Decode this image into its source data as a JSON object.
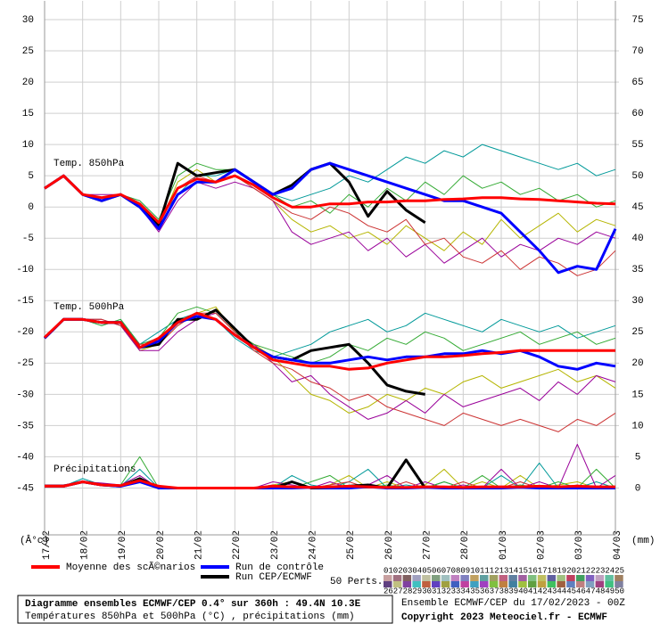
{
  "chart_data": {
    "type": "line",
    "ylabel": "(Â°c)",
    "y2label": "(mm)",
    "panels": [
      "Temp. 850hPa",
      "Temp. 500hPa",
      "Précipitations"
    ],
    "x": [
      0,
      12,
      24,
      36,
      48,
      60,
      72,
      84,
      96,
      108,
      120,
      132,
      144,
      156,
      168,
      180,
      192,
      204,
      216,
      228,
      240,
      252,
      264,
      276,
      288,
      300,
      312,
      324,
      336,
      348,
      360
    ],
    "xlim": [
      0,
      360
    ],
    "xticks": [
      {
        "value": 0,
        "label": "17/02"
      },
      {
        "value": 24,
        "label": "18/02"
      },
      {
        "value": 48,
        "label": "19/02"
      },
      {
        "value": 72,
        "label": "20/02"
      },
      {
        "value": 96,
        "label": "21/02"
      },
      {
        "value": 120,
        "label": "22/02"
      },
      {
        "value": 144,
        "label": "23/02"
      },
      {
        "value": 168,
        "label": "24/02"
      },
      {
        "value": 192,
        "label": "25/02"
      },
      {
        "value": 216,
        "label": "26/02"
      },
      {
        "value": 240,
        "label": "27/02"
      },
      {
        "value": 264,
        "label": "28/02"
      },
      {
        "value": 288,
        "label": "01/03"
      },
      {
        "value": 312,
        "label": "02/03"
      },
      {
        "value": 336,
        "label": "03/03"
      },
      {
        "value": 360,
        "label": "04/03"
      }
    ],
    "ylim": [
      -52.5,
      33
    ],
    "yticks": [
      30,
      25,
      20,
      15,
      10,
      5,
      0,
      -5,
      -10,
      -15,
      -20,
      -25,
      -30,
      -35,
      -40,
      -45
    ],
    "y2lim": [
      -7.5,
      78
    ],
    "y2ticks": [
      75,
      70,
      65,
      60,
      55,
      50,
      45,
      40,
      35,
      30,
      25,
      20,
      15,
      10,
      5,
      0
    ],
    "grid": true,
    "series": [
      {
        "name": "Moyenne des scÃ©narios",
        "color": "#ff0000",
        "values_850": [
          3,
          5,
          2,
          1.5,
          2,
          0.5,
          -2.5,
          3,
          4.5,
          4,
          5,
          3.5,
          1.5,
          0,
          0,
          0.5,
          0.5,
          0.8,
          0.8,
          1,
          1,
          1.2,
          1.3,
          1.5,
          1.5,
          1.3,
          1.2,
          1,
          0.8,
          0.6,
          0.5
        ],
        "values_500": [
          -20.9,
          -18,
          -18,
          -18.5,
          -18.5,
          -22.5,
          -21,
          -18.5,
          -17,
          -18,
          -20.5,
          -22.5,
          -24.5,
          -25,
          -25.5,
          -25.5,
          -26,
          -25.8,
          -25,
          -24.5,
          -24,
          -24,
          -23.8,
          -23.5,
          -23.3,
          -23,
          -23,
          -23,
          -23,
          -23,
          -23
        ],
        "values_precip": [
          0.3,
          0.3,
          1,
          0.5,
          0.4,
          1.2,
          0.3,
          0,
          0,
          0,
          0,
          0,
          0.3,
          0.2,
          0.1,
          0.2,
          0.3,
          0.2,
          0.1,
          0.1,
          0.2,
          0.2,
          0.1,
          0.2,
          0.2,
          0.2,
          0.3,
          0.2,
          0.3,
          0.2,
          0.2
        ]
      },
      {
        "name": "Run de contrôle",
        "color": "#0000ff",
        "values_850": [
          3,
          5,
          2,
          1,
          2,
          0,
          -3.5,
          2,
          4,
          4,
          6,
          4,
          2,
          3,
          6,
          7,
          6,
          5,
          4,
          3,
          2,
          1,
          1,
          0,
          -1,
          -4,
          -7,
          -10.5,
          -9.5,
          -10,
          -3.5
        ],
        "values_500": [
          -21,
          -18,
          -18,
          -18.5,
          -18.5,
          -22.5,
          -21.5,
          -18.5,
          -17.5,
          -18,
          -20.5,
          -22.5,
          -24,
          -24.5,
          -25,
          -25,
          -24.5,
          -24,
          -24.5,
          -24,
          -24,
          -23.5,
          -23.5,
          -23,
          -23.5,
          -23,
          -24,
          -25.5,
          -26,
          -25,
          -25.5
        ],
        "values_precip": [
          0.3,
          0.3,
          1,
          0.5,
          0.3,
          1,
          0,
          0,
          0,
          0,
          0,
          0,
          0,
          0,
          0.1,
          0,
          0,
          0.2,
          0,
          0,
          0.1,
          0,
          0,
          0,
          0,
          0.1,
          0,
          0,
          0,
          0,
          0
        ]
      },
      {
        "name": "Run CEP/ECMWF",
        "color": "#000000",
        "values_850": [
          3,
          5,
          2,
          1,
          2,
          0,
          -3,
          7,
          5,
          5.5,
          6,
          4,
          2,
          3.5,
          6,
          7,
          4,
          -1.5,
          2.5,
          -0.5,
          -2.5,
          null,
          null,
          null,
          null,
          null,
          null,
          null,
          null,
          null,
          null
        ],
        "values_500": [
          -21,
          -18,
          -18,
          -18.5,
          -18.5,
          -22.5,
          -22,
          -18,
          -18,
          -16.5,
          -19.5,
          -22.5,
          -24,
          -24.5,
          -23,
          -22.5,
          -22,
          -25,
          -28.5,
          -29.5,
          -30,
          null,
          null,
          null,
          null,
          null,
          null,
          null,
          null,
          null,
          null
        ],
        "values_precip": [
          0.3,
          0.3,
          1,
          0.5,
          0.3,
          1.5,
          0,
          0,
          0,
          0,
          0,
          0,
          0,
          1,
          0,
          0,
          0.3,
          0.5,
          0,
          4.5,
          0,
          null,
          null,
          null,
          null,
          null,
          null,
          null,
          null,
          null,
          null
        ]
      }
    ],
    "members": [
      {
        "color": "#b5b500",
        "values_850": [
          3,
          5,
          2,
          1,
          2,
          0,
          -3,
          4,
          6,
          4,
          5,
          3,
          1,
          -2,
          -4,
          -3,
          -5,
          -4,
          -6,
          -3,
          -5,
          -7,
          -4,
          -6,
          -2,
          -5,
          -3,
          -1,
          -4,
          -2,
          -3
        ],
        "values_500": [
          -21,
          -18,
          -18,
          -18,
          -19,
          -23,
          -22,
          -19,
          -17,
          -16,
          -20,
          -22,
          -24,
          -27,
          -30,
          -31,
          -33,
          -32,
          -30,
          -31,
          -29,
          -30,
          -28,
          -27,
          -29,
          -28,
          -27,
          -26,
          -28,
          -27,
          -29
        ],
        "values_precip": [
          0.5,
          0.5,
          1,
          0.5,
          0.5,
          1.5,
          0,
          0,
          0,
          0,
          0,
          0,
          0.5,
          1,
          0,
          0.5,
          2,
          0,
          1,
          0,
          0.5,
          3,
          0,
          1,
          0,
          2,
          0,
          0.5,
          1,
          0,
          0
        ]
      },
      {
        "color": "#009999",
        "values_850": [
          3,
          5,
          2,
          1,
          2,
          1,
          -2,
          2,
          5,
          5,
          6,
          4,
          2,
          1,
          2,
          3,
          5,
          4,
          6,
          8,
          7,
          9,
          8,
          10,
          9,
          8,
          7,
          6,
          7,
          5,
          6
        ],
        "values_500": [
          -21,
          -18,
          -18,
          -19,
          -18,
          -22,
          -20,
          -18,
          -17,
          -18,
          -21,
          -23,
          -24,
          -23,
          -22,
          -20,
          -19,
          -18,
          -20,
          -19,
          -17,
          -18,
          -19,
          -20,
          -18,
          -19,
          -20,
          -19,
          -21,
          -20,
          -19
        ],
        "values_precip": [
          0.3,
          0.3,
          1.5,
          0.5,
          0.3,
          3,
          0,
          0,
          0,
          0,
          0,
          0,
          0,
          2,
          0.5,
          0,
          1,
          3,
          0,
          0.5,
          0,
          1,
          0,
          0,
          2,
          0,
          4,
          0,
          0,
          1,
          0
        ]
      },
      {
        "color": "#990099",
        "values_850": [
          3,
          5,
          2,
          2,
          2,
          0,
          -4,
          1,
          4,
          3,
          4,
          3,
          1,
          -4,
          -6,
          -5,
          -4,
          -7,
          -5,
          -8,
          -6,
          -9,
          -7,
          -5,
          -8,
          -6,
          -7,
          -5,
          -6,
          -4,
          -5
        ],
        "values_500": [
          -21,
          -18,
          -18,
          -18,
          -19,
          -23,
          -23,
          -20,
          -18,
          -17,
          -20,
          -22,
          -25,
          -28,
          -27,
          -30,
          -32,
          -34,
          -33,
          -31,
          -33,
          -30,
          -32,
          -31,
          -30,
          -29,
          -31,
          -28,
          -30,
          -27,
          -28
        ],
        "values_precip": [
          0.5,
          0.5,
          1,
          0.8,
          0.5,
          2,
          0,
          0,
          0,
          0,
          0,
          0,
          1,
          0.5,
          0,
          1,
          0,
          0.5,
          2,
          0,
          1,
          0,
          0.5,
          0,
          3,
          0,
          1,
          0,
          7,
          0,
          2
        ]
      },
      {
        "color": "#33aa33",
        "values_850": [
          3,
          5,
          2,
          1,
          2,
          1,
          -2,
          5,
          7,
          6,
          6,
          4,
          2,
          0,
          1,
          -1,
          2,
          0,
          3,
          1,
          4,
          2,
          5,
          3,
          4,
          2,
          3,
          1,
          2,
          0,
          1
        ],
        "values_500": [
          -21,
          -18,
          -18,
          -19,
          -18,
          -22,
          -21,
          -17,
          -16,
          -17,
          -20,
          -22,
          -23,
          -24,
          -25,
          -24,
          -22,
          -23,
          -21,
          -22,
          -20,
          -21,
          -23,
          -22,
          -21,
          -20,
          -22,
          -21,
          -20,
          -22,
          -21
        ],
        "values_precip": [
          0.3,
          0.3,
          1,
          0.5,
          0.5,
          5,
          0,
          0,
          0,
          0,
          0,
          0,
          0,
          0,
          1,
          2,
          0,
          0,
          0.5,
          0,
          0,
          1,
          0,
          2,
          0,
          0.5,
          0,
          1,
          0,
          3,
          0
        ]
      },
      {
        "color": "#cc3333",
        "values_850": [
          3,
          5,
          2,
          1,
          2,
          0,
          -3,
          3,
          5,
          4,
          5,
          3,
          1,
          -1,
          -2,
          0,
          -1,
          -3,
          -4,
          -2,
          -6,
          -5,
          -8,
          -9,
          -7,
          -10,
          -8,
          -9,
          -11,
          -10,
          -7
        ],
        "values_500": [
          -21,
          -18,
          -18,
          -18,
          -19,
          -22,
          -22,
          -19,
          -17,
          -17,
          -20,
          -23,
          -25,
          -26,
          -28,
          -29,
          -31,
          -30,
          -32,
          -33,
          -34,
          -35,
          -33,
          -34,
          -35,
          -34,
          -35,
          -36,
          -34,
          -35,
          -33
        ],
        "values_precip": [
          0.5,
          0.5,
          1,
          0.5,
          0.3,
          1,
          0,
          0,
          0,
          0,
          0,
          0,
          0.5,
          0,
          0,
          0.5,
          1,
          0,
          0,
          1,
          0,
          0,
          1,
          0,
          0,
          1,
          0,
          0,
          0.5,
          0,
          0
        ]
      }
    ],
    "perts_label": "50 Perts.",
    "perts": [
      "01",
      "02",
      "03",
      "04",
      "05",
      "06",
      "07",
      "08",
      "09",
      "10",
      "11",
      "12",
      "13",
      "14",
      "15",
      "16",
      "17",
      "18",
      "19",
      "20",
      "21",
      "22",
      "23",
      "24",
      "25",
      "26",
      "27",
      "28",
      "29",
      "30",
      "31",
      "32",
      "33",
      "34",
      "35",
      "36",
      "37",
      "38",
      "39",
      "40",
      "41",
      "42",
      "43",
      "44",
      "45",
      "46",
      "47",
      "48",
      "49",
      "50"
    ],
    "pert_colors": [
      "#c8a0a0",
      "#a07080",
      "#806060",
      "#a0a0c0",
      "#c0c0a0",
      "#80a080",
      "#a0c0c0",
      "#c080c0",
      "#8080c0",
      "#c0a060",
      "#60a0a0",
      "#a0a060",
      "#c06080",
      "#6080a0",
      "#a060a0",
      "#80c080",
      "#c0c060",
      "#6060a0",
      "#a0c080",
      "#c04060",
      "#40a060",
      "#8060c0",
      "#c0a0c0",
      "#60c0a0",
      "#a08060",
      "#604080",
      "#c0c080",
      "#8040a0",
      "#40c0c0",
      "#c06040",
      "#6040c0",
      "#a0a040",
      "#4060c0",
      "#c040a0",
      "#40a0c0",
      "#a040c0",
      "#80c040",
      "#c08040",
      "#4080a0",
      "#a0c040",
      "#60a040",
      "#c0a040",
      "#40c060",
      "#a06040",
      "#6080c0",
      "#c08080",
      "#80a0c0",
      "#a04080",
      "#40c080",
      "#8080a0"
    ],
    "run_info": "Ensemble ECMWF/CEP du 17/02/2023 - 00Z",
    "copyright": "Copyright 2023 Meteociel.fr - ECMWF",
    "title": "Diagramme ensembles ECMWF/CEP 0.4° sur 360h : 49.4N 10.3E",
    "subtitle": "Températures 850hPa et 500hPa (°C) , précipitations (mm)"
  }
}
